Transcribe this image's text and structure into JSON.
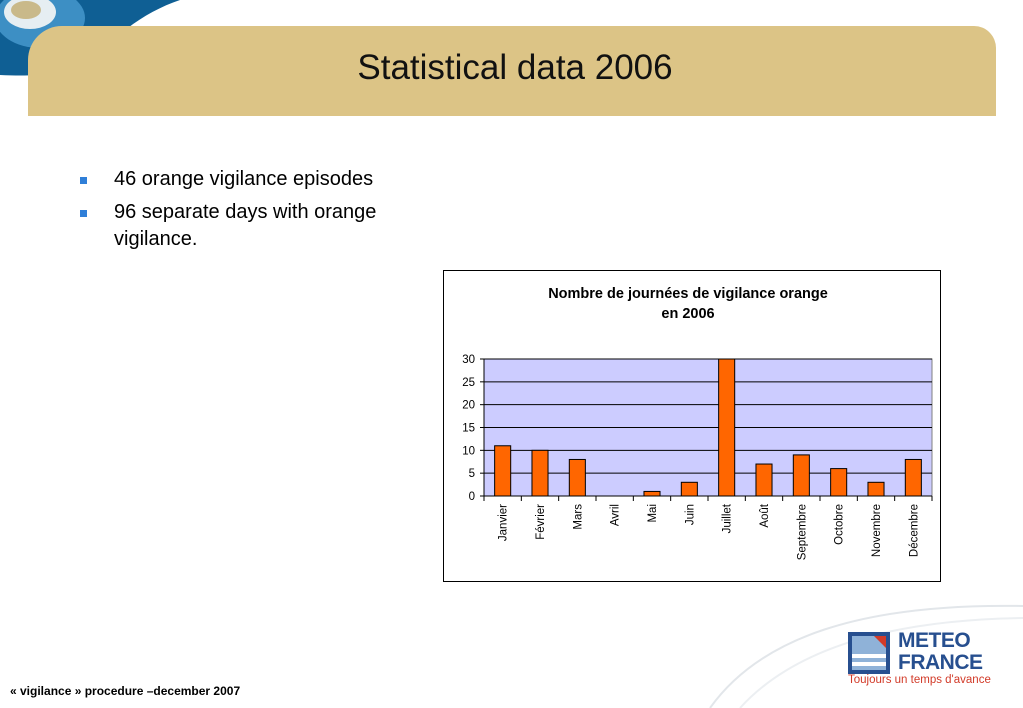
{
  "slide": {
    "title": "Statistical data 2006",
    "bullets": [
      "46 orange vigilance episodes",
      "96 separate days with orange vigilance."
    ],
    "footer": "« vigilance » procedure –december 2007"
  },
  "logo": {
    "line1": "METEO",
    "line2": "FRANCE",
    "tagline": "Toujours un temps d'avance"
  },
  "colors": {
    "title_band": "#dcc486",
    "bar_fill": "#ff6600",
    "plot_background": "#ccccff",
    "bullet": "#2f7fd8",
    "logo_blue": "#274f8f",
    "logo_red": "#d23a28"
  },
  "chart_data": {
    "type": "bar",
    "title": "Nombre de journées de vigilance orange en 2006",
    "title_lines": [
      "Nombre de journées de vigilance orange",
      "en 2006"
    ],
    "xlabel": "",
    "ylabel": "",
    "categories": [
      "Janvier",
      "Février",
      "Mars",
      "Avril",
      "Mai",
      "Juin",
      "Juillet",
      "Août",
      "Septembre",
      "Octobre",
      "Novembre",
      "Décembre"
    ],
    "values": [
      11,
      10,
      8,
      0,
      1,
      3,
      30,
      7,
      9,
      6,
      3,
      8
    ],
    "ylim": [
      0,
      30
    ],
    "yticks": [
      0,
      5,
      10,
      15,
      20,
      25,
      30
    ],
    "grid": true,
    "legend": "none"
  }
}
